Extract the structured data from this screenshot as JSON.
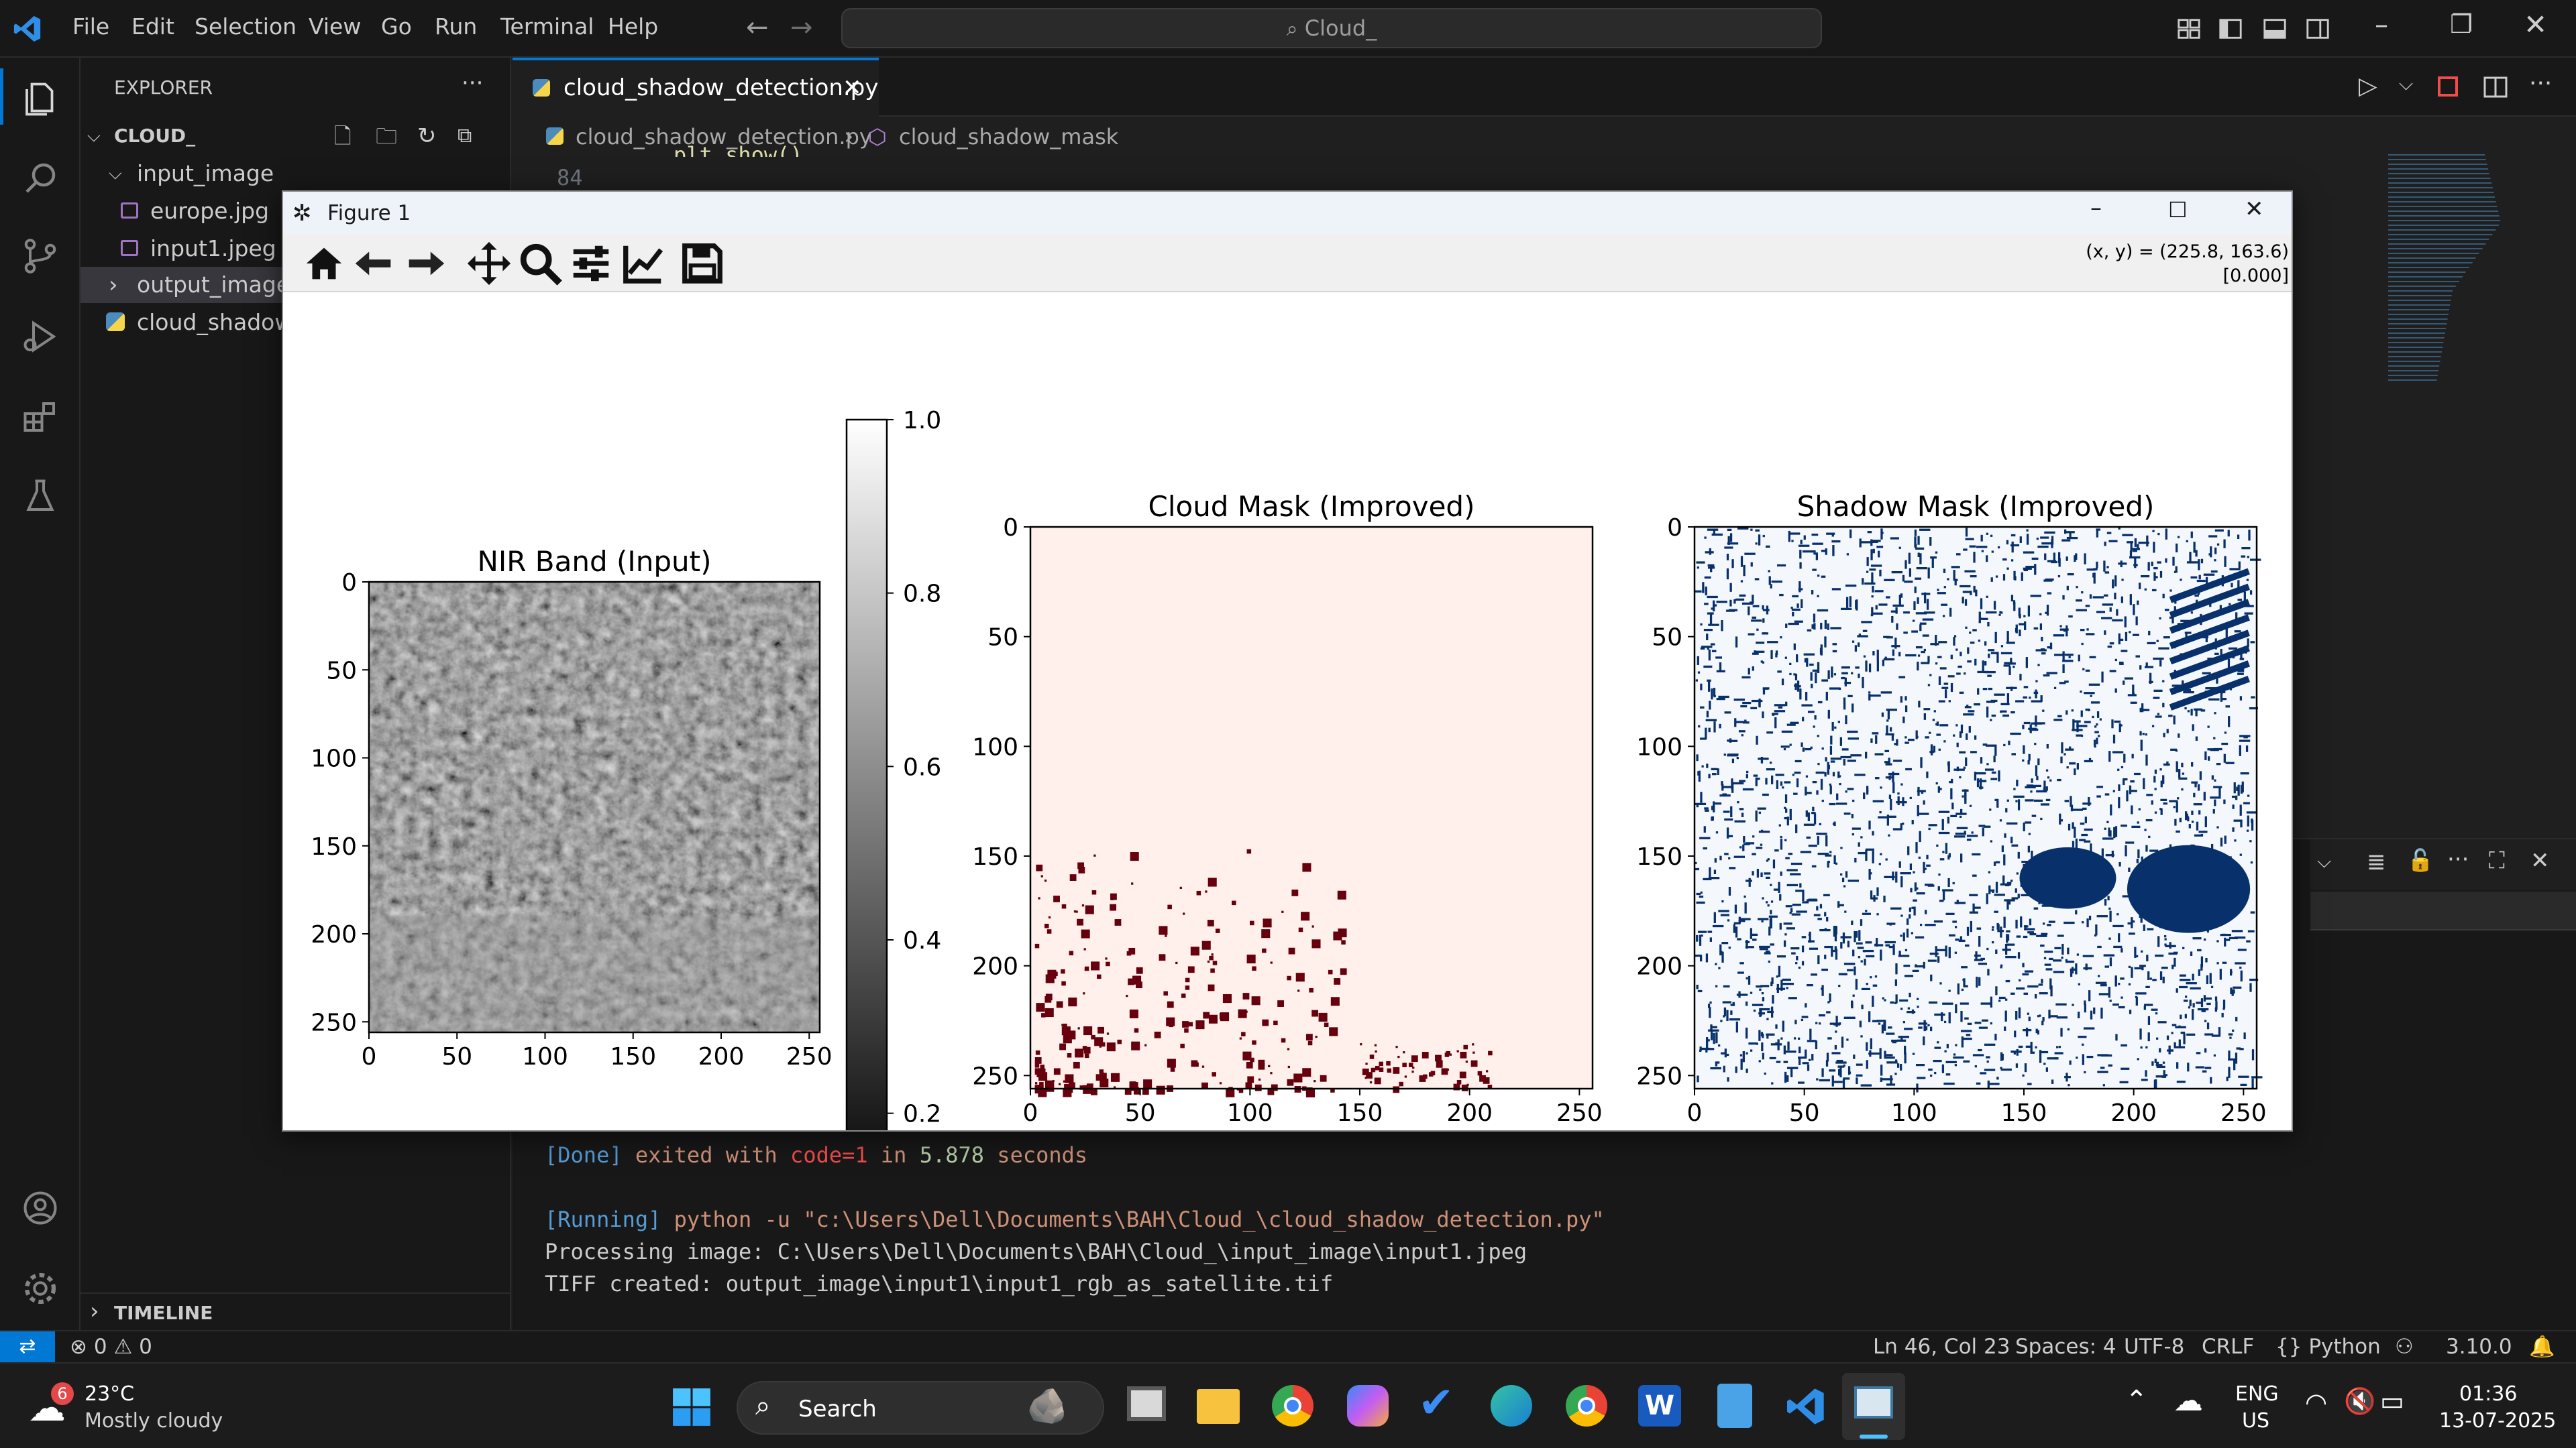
{
  "titlebar": {
    "menu": [
      "File",
      "Edit",
      "Selection",
      "View",
      "Go",
      "Run",
      "Terminal",
      "Help"
    ],
    "search_text": "Cloud_"
  },
  "sidebar": {
    "header": "EXPLORER",
    "more": "···",
    "root": "CLOUD_",
    "items": [
      {
        "label": "input_image",
        "kind": "folder-open"
      },
      {
        "label": "europe.jpg",
        "kind": "image"
      },
      {
        "label": "input1.jpeg",
        "kind": "image"
      },
      {
        "label": "output_image",
        "kind": "folder-closed"
      },
      {
        "label": "cloud_shadow_",
        "kind": "python"
      }
    ],
    "timeline": "TIMELINE"
  },
  "editor": {
    "tab_label": "cloud_shadow_detection.py",
    "breadcrumb": [
      "cloud_shadow_detection.py",
      "cloud_shadow_mask"
    ],
    "line_number": "84",
    "code_fragment": "plt.show()"
  },
  "terminal": {
    "lines": [
      {
        "tag": "[Done]",
        "text": " exited with ",
        "code": "code=1",
        "rest1": " in ",
        "num": "5.878",
        "rest2": " seconds"
      },
      {
        "tag": "[Running]",
        "text": " python -u \"c:\\Users\\Dell\\Documents\\BAH\\Cloud_\\cloud_shadow_detection.py\""
      },
      {
        "text": "Processing image: C:\\Users\\Dell\\Documents\\BAH\\Cloud_\\input_image\\input1.jpeg"
      },
      {
        "text": "TIFF created: output_image\\input1\\input1_rgb_as_satellite.tif"
      }
    ]
  },
  "statusbar": {
    "errors": "0",
    "warnings": "0",
    "position": "Ln 46, Col 23",
    "spaces": "Spaces: 4",
    "encoding": "UTF-8",
    "eol": "CRLF",
    "language": "Python",
    "version": "3.10.0"
  },
  "figure": {
    "title": "Figure 1",
    "coords": "(x, y) = (225.8, 163.6)",
    "value": "[0.000]"
  },
  "chart_data": [
    {
      "type": "heatmap",
      "title": "NIR Band (Input)",
      "xlim": [
        0,
        256
      ],
      "ylim": [
        256,
        0
      ],
      "xticks": [
        0,
        50,
        100,
        150,
        200,
        250
      ],
      "yticks": [
        0,
        50,
        100,
        150,
        200,
        250
      ],
      "colormap": "gray"
    },
    {
      "type": "heatmap",
      "title": "",
      "colorbar_ticks": [
        1.0,
        0.8,
        0.6,
        0.4,
        0.2
      ],
      "colorbar_range": [
        0.1,
        1.0
      ]
    },
    {
      "type": "heatmap",
      "title": "Cloud Mask (Improved)",
      "xlim": [
        0,
        256
      ],
      "ylim": [
        256,
        0
      ],
      "xticks": [
        0,
        50,
        100,
        150,
        200,
        250
      ],
      "yticks": [
        0,
        50,
        100,
        150,
        200,
        250
      ],
      "colormap": "Reds",
      "colors": {
        "background": "#fff0ec",
        "mask": "#67000d"
      }
    },
    {
      "type": "heatmap",
      "title": "Shadow Mask (Improved)",
      "xlim": [
        0,
        256
      ],
      "ylim": [
        256,
        0
      ],
      "xticks": [
        0,
        50,
        100,
        150,
        200,
        250
      ],
      "yticks": [
        0,
        50,
        100,
        150,
        200,
        250
      ],
      "colormap": "Blues",
      "colors": {
        "background": "#f4f8fd",
        "mask": "#08306b"
      }
    }
  ],
  "taskbar": {
    "weather_temp": "23°C",
    "weather_desc": "Mostly cloudy",
    "weather_badge": "6",
    "search": "Search",
    "lang1": "ENG",
    "lang2": "US",
    "time": "01:36",
    "date": "13-07-2025"
  }
}
